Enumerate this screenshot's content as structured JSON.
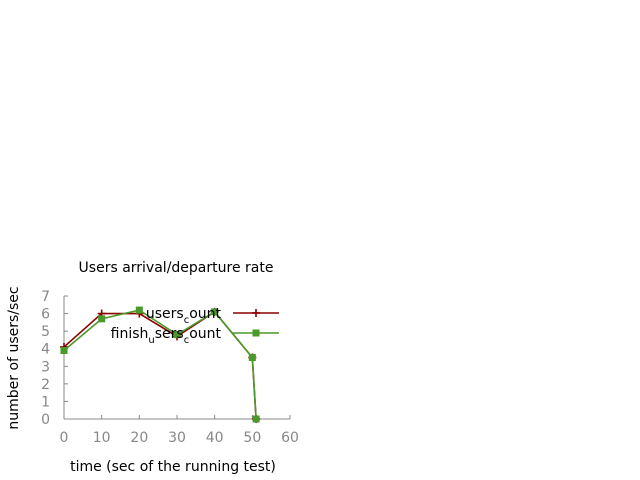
{
  "chart_data": {
    "type": "line",
    "title": "Users arrival/departure rate",
    "xlabel": "time (sec of the running test)",
    "ylabel": "number of users/sec",
    "xlim": [
      0,
      60
    ],
    "ylim": [
      0,
      7
    ],
    "xticks": [
      "0",
      "10",
      "20",
      "30",
      "40",
      "50",
      "60"
    ],
    "yticks": [
      "0",
      "1",
      "2",
      "3",
      "4",
      "5",
      "6",
      "7"
    ],
    "grid": false,
    "legend_position": "top-right",
    "series": [
      {
        "name": "users_count",
        "legend_parts": [
          "users",
          "c",
          "ount"
        ],
        "color": "#8b0000",
        "marker": "plus",
        "x": [
          0,
          10,
          20,
          30,
          40,
          50,
          51
        ],
        "y": [
          4.1,
          6.0,
          6.0,
          4.7,
          6.1,
          3.5,
          0
        ]
      },
      {
        "name": "finish_users_count",
        "legend_parts": [
          "finish",
          "u",
          "sers",
          "c",
          "ount"
        ],
        "color": "#4a9a2a",
        "marker": "square",
        "x": [
          0,
          10,
          20,
          30,
          40,
          50,
          51
        ],
        "y": [
          3.9,
          5.7,
          6.2,
          4.8,
          6.1,
          3.5,
          0
        ]
      }
    ]
  }
}
